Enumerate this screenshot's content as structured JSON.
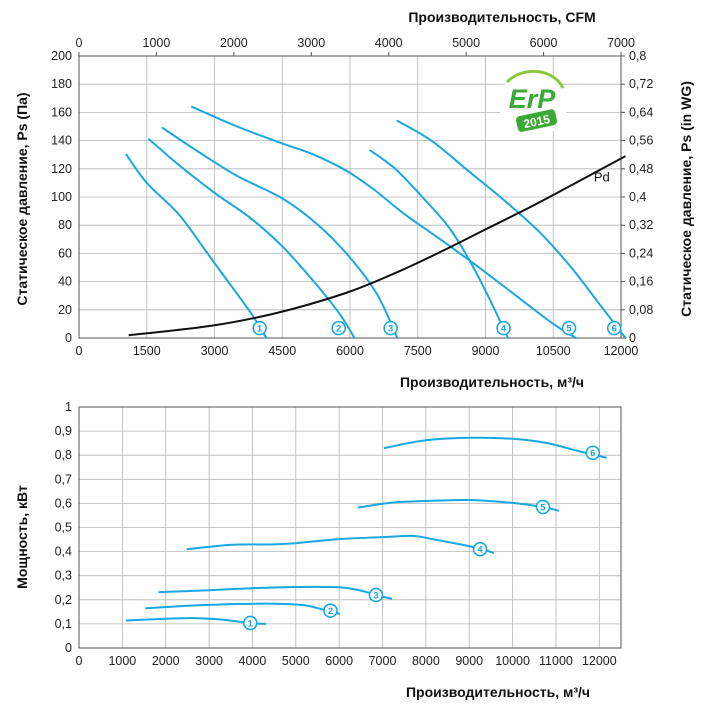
{
  "chart_data": [
    {
      "type": "line",
      "xlabel": "Производительность, м³/ч",
      "x_ticks": [
        "0",
        "1500",
        "3000",
        "4500",
        "6000",
        "7500",
        "9000",
        "10500",
        "12000"
      ],
      "xlim": [
        0,
        12000
      ],
      "x2label": "Производительность, CFM",
      "x2_ticks": [
        "0",
        "1000",
        "2000",
        "3000",
        "4000",
        "5000",
        "6000",
        "7000"
      ],
      "x2lim": [
        0,
        7000
      ],
      "ylabel": "Статическое давление, Ps (Па)",
      "y_ticks": [
        "0",
        "20",
        "40",
        "60",
        "80",
        "100",
        "120",
        "140",
        "160",
        "180",
        "200"
      ],
      "ylim": [
        0,
        200
      ],
      "y2label": "Статическое давление, Ps (in WG)",
      "y2_ticks": [
        "0",
        "0,08",
        "0,16",
        "0,24",
        "0,32",
        "0,4",
        "0,48",
        "0,56",
        "0,64",
        "0,72",
        "0,8"
      ],
      "y2lim": [
        0,
        0.8
      ],
      "grid": true,
      "logo": {
        "line1": "ErP",
        "line2": "2015",
        "color": "#3aa935"
      },
      "series": [
        {
          "name": "1",
          "color": "#1ba7e0",
          "x": [
            1050,
            1500,
            2200,
            2800,
            3300,
            3800,
            4150
          ],
          "y": [
            130,
            110,
            88,
            62,
            40,
            18,
            0
          ]
        },
        {
          "name": "2",
          "color": "#1ba7e0",
          "x": [
            1550,
            2200,
            3000,
            3800,
            4500,
            5200,
            5750,
            6100
          ],
          "y": [
            141,
            123,
            103,
            85,
            65,
            40,
            18,
            0
          ]
        },
        {
          "name": "3",
          "color": "#1ba7e0",
          "x": [
            1850,
            2600,
            3500,
            4500,
            5300,
            6000,
            6600,
            7050
          ],
          "y": [
            149,
            133,
            115,
            99,
            80,
            57,
            31,
            0
          ]
        },
        {
          "name": "4",
          "color": "#1ba7e0",
          "x": [
            6450,
            7000,
            7600,
            8200,
            8700,
            9100,
            9500
          ],
          "y": [
            133,
            120,
            100,
            78,
            52,
            27,
            0
          ]
        },
        {
          "name": "5",
          "color": "#1ba7e0",
          "x": [
            2500,
            3500,
            4500,
            5200,
            5900,
            6500,
            7200,
            8000,
            8900,
            9800,
            10500,
            11000
          ],
          "y": [
            164,
            150,
            138,
            130,
            119,
            106,
            88,
            70,
            49,
            27,
            10,
            0
          ]
        },
        {
          "name": "6",
          "color": "#1ba7e0",
          "x": [
            7050,
            7800,
            8600,
            9400,
            10200,
            10900,
            11500,
            12100
          ],
          "y": [
            154,
            140,
            119,
            98,
            75,
            50,
            25,
            0
          ]
        },
        {
          "name": "Pd",
          "color": "#111111",
          "x": [
            1100,
            2000,
            3000,
            4000,
            5000,
            6000,
            7000,
            8000,
            9000,
            10000,
            11000,
            12100
          ],
          "y": [
            2,
            5,
            9,
            15,
            23,
            33,
            46,
            61,
            77,
            93,
            110,
            129
          ]
        }
      ],
      "badges": [
        {
          "label": "1",
          "x": 4000,
          "y": 7
        },
        {
          "label": "2",
          "x": 5750,
          "y": 7
        },
        {
          "label": "3",
          "x": 6900,
          "y": 7
        },
        {
          "label": "4",
          "x": 9400,
          "y": 7
        },
        {
          "label": "5",
          "x": 10850,
          "y": 7
        },
        {
          "label": "6",
          "x": 11850,
          "y": 7
        }
      ],
      "pd_label": {
        "text": "Pd",
        "x": 11400,
        "y": 111
      }
    },
    {
      "type": "line",
      "xlabel": "Производительность, м³/ч",
      "x_ticks": [
        "0",
        "1000",
        "2000",
        "3000",
        "4000",
        "5000",
        "6000",
        "7000",
        "8000",
        "9000",
        "10000",
        "11000",
        "12000"
      ],
      "xlim": [
        0,
        12500
      ],
      "ylabel": "Мощность, кВт",
      "y_ticks": [
        "0",
        "0,1",
        "0,2",
        "0,3",
        "0,4",
        "0,5",
        "0,6",
        "0,7",
        "0,8",
        "0,9",
        "1"
      ],
      "ylim": [
        0,
        1
      ],
      "grid": true,
      "series": [
        {
          "name": "1",
          "color": "#1ba7e0",
          "x": [
            1100,
            1800,
            2600,
            3300,
            3900,
            4300
          ],
          "y": [
            0.114,
            0.12,
            0.124,
            0.118,
            0.104,
            0.1
          ]
        },
        {
          "name": "2",
          "color": "#1ba7e0",
          "x": [
            1550,
            2500,
            3500,
            4500,
            5200,
            5700,
            6000
          ],
          "y": [
            0.165,
            0.175,
            0.182,
            0.184,
            0.177,
            0.156,
            0.142
          ]
        },
        {
          "name": "3",
          "color": "#1ba7e0",
          "x": [
            1850,
            3000,
            4000,
            5000,
            6000,
            6500,
            6900,
            7200
          ],
          "y": [
            0.232,
            0.24,
            0.248,
            0.253,
            0.252,
            0.238,
            0.218,
            0.205
          ]
        },
        {
          "name": "4",
          "color": "#1ba7e0",
          "x": [
            2500,
            3500,
            4500,
            5000,
            6000,
            7000,
            7700,
            8200,
            8800,
            9300,
            9550
          ],
          "y": [
            0.41,
            0.428,
            0.43,
            0.435,
            0.452,
            0.46,
            0.465,
            0.45,
            0.43,
            0.41,
            0.395
          ]
        },
        {
          "name": "5",
          "color": "#1ba7e0",
          "x": [
            6450,
            7200,
            8000,
            9000,
            10000,
            10700,
            11050
          ],
          "y": [
            0.583,
            0.603,
            0.61,
            0.614,
            0.602,
            0.585,
            0.57
          ]
        },
        {
          "name": "6",
          "color": "#1ba7e0",
          "x": [
            7050,
            8000,
            9000,
            10000,
            10800,
            11500,
            12150
          ],
          "y": [
            0.83,
            0.862,
            0.872,
            0.868,
            0.85,
            0.818,
            0.79
          ]
        }
      ],
      "badges": [
        {
          "label": "1",
          "x": 3950,
          "y": 0.104
        },
        {
          "label": "2",
          "x": 5800,
          "y": 0.155
        },
        {
          "label": "3",
          "x": 6850,
          "y": 0.22
        },
        {
          "label": "4",
          "x": 9250,
          "y": 0.41
        },
        {
          "label": "5",
          "x": 10700,
          "y": 0.585
        },
        {
          "label": "6",
          "x": 11850,
          "y": 0.81
        }
      ]
    }
  ]
}
